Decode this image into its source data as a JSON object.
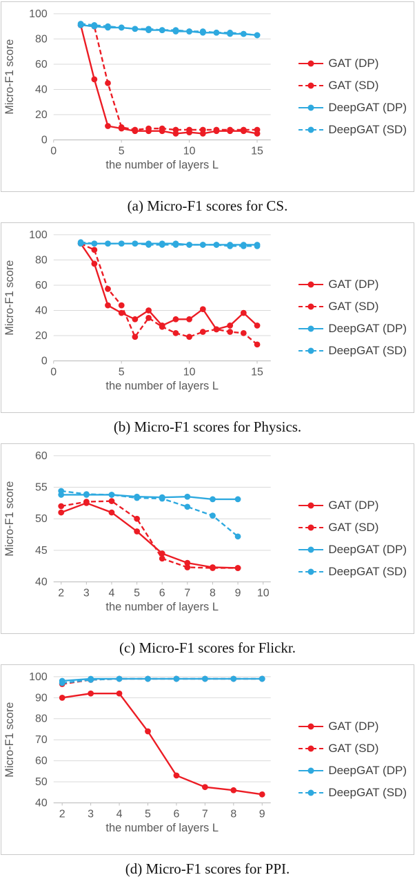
{
  "figure": {
    "background": "#ffffff"
  },
  "colors": {
    "red": "#ec1c24",
    "blue": "#2ea9df",
    "tick_text": "#595959",
    "legend_text": "#3f3f3f",
    "gridline": "#d9d9d9",
    "axis_line": "#bfbfbf",
    "panel_border": "#c9c9c9",
    "caption_text": "#121212"
  },
  "chart_data": [
    {
      "type": "line",
      "caption": "(a) Micro-F1 scores for CS.",
      "xlabel": "the number of layers L",
      "ylabel": "Micro-F1 score",
      "xlim": [
        0,
        16
      ],
      "ylim": [
        0,
        100
      ],
      "xticks": [
        0,
        5,
        10,
        15
      ],
      "yticks": [
        0,
        20,
        40,
        60,
        80,
        100
      ],
      "grid": true,
      "legend_position": "right",
      "x": [
        2,
        3,
        4,
        5,
        6,
        7,
        8,
        9,
        10,
        11,
        12,
        13,
        14,
        15
      ],
      "series": [
        {
          "name": "GAT (DP)",
          "color": "#ec1c24",
          "dashed": false,
          "values": [
            91,
            48,
            11,
            9,
            7,
            7,
            7,
            5,
            6,
            5,
            7,
            7,
            7,
            5
          ]
        },
        {
          "name": "GAT (SD)",
          "color": "#ec1c24",
          "dashed": true,
          "values": [
            91,
            90,
            45,
            10,
            8,
            9,
            9,
            8,
            8,
            8,
            8,
            8,
            8,
            8
          ]
        },
        {
          "name": "DeepGAT (DP)",
          "color": "#2ea9df",
          "dashed": false,
          "values": [
            91,
            90,
            89,
            89,
            88,
            87,
            87,
            86,
            86,
            85,
            85,
            84,
            84,
            83
          ]
        },
        {
          "name": "DeepGAT (SD)",
          "color": "#2ea9df",
          "dashed": true,
          "values": [
            92,
            91,
            90,
            89,
            88,
            88,
            87,
            87,
            86,
            86,
            85,
            85,
            84,
            83
          ]
        }
      ]
    },
    {
      "type": "line",
      "caption": "(b) Micro-F1 scores for Physics.",
      "xlabel": "the number of layers L",
      "ylabel": "Micro-F1 score",
      "xlim": [
        0,
        16
      ],
      "ylim": [
        0,
        100
      ],
      "xticks": [
        0,
        5,
        10,
        15
      ],
      "yticks": [
        0,
        20,
        40,
        60,
        80,
        100
      ],
      "grid": true,
      "legend_position": "right",
      "x": [
        2,
        3,
        4,
        5,
        6,
        7,
        8,
        9,
        10,
        11,
        12,
        13,
        14,
        15
      ],
      "series": [
        {
          "name": "GAT (DP)",
          "color": "#ec1c24",
          "dashed": false,
          "values": [
            93,
            77,
            44,
            38,
            33,
            40,
            28,
            33,
            33,
            41,
            25,
            28,
            38,
            28
          ]
        },
        {
          "name": "GAT (SD)",
          "color": "#ec1c24",
          "dashed": true,
          "values": [
            93,
            88,
            57,
            44,
            19,
            34,
            27,
            22,
            19,
            23,
            25,
            23,
            22,
            13
          ]
        },
        {
          "name": "DeepGAT (DP)",
          "color": "#2ea9df",
          "dashed": false,
          "values": [
            93,
            93,
            93,
            93,
            93,
            93,
            93,
            93,
            92,
            92,
            92,
            92,
            92,
            92
          ]
        },
        {
          "name": "DeepGAT (SD)",
          "color": "#2ea9df",
          "dashed": true,
          "values": [
            94,
            93,
            93,
            93,
            93,
            92,
            92,
            92,
            92,
            92,
            92,
            91,
            91,
            91
          ]
        }
      ]
    },
    {
      "type": "line",
      "caption": "(c) Micro-F1 scores for Flickr.",
      "xlabel": "the number of layers L",
      "ylabel": "Micro-F1 score",
      "xlim": [
        1.7,
        10.3
      ],
      "ylim": [
        40,
        60
      ],
      "xticks": [
        2,
        3,
        4,
        5,
        6,
        7,
        8,
        9,
        10
      ],
      "yticks": [
        40,
        45,
        50,
        55,
        60
      ],
      "grid": true,
      "legend_position": "right",
      "x": [
        2,
        3,
        4,
        5,
        6,
        7,
        8,
        9
      ],
      "series": [
        {
          "name": "GAT (DP)",
          "color": "#ec1c24",
          "dashed": false,
          "values": [
            51,
            52.5,
            51,
            48,
            44.5,
            43,
            42.3,
            42.2
          ]
        },
        {
          "name": "GAT (SD)",
          "color": "#ec1c24",
          "dashed": true,
          "values": [
            52,
            52.7,
            52.8,
            50,
            43.7,
            42.3,
            42.2,
            42.2
          ]
        },
        {
          "name": "DeepGAT (DP)",
          "color": "#2ea9df",
          "dashed": false,
          "values": [
            53.8,
            53.8,
            53.8,
            53.5,
            53.4,
            53.5,
            53.1,
            53.1
          ]
        },
        {
          "name": "DeepGAT (SD)",
          "color": "#2ea9df",
          "dashed": true,
          "values": [
            54.4,
            53.9,
            53.8,
            53.3,
            53.2,
            51.9,
            50.5,
            47.2
          ]
        }
      ]
    },
    {
      "type": "line",
      "caption": "(d) Micro-F1 scores for PPI.",
      "xlabel": "the number of layers L",
      "ylabel": "Micro-F1 score",
      "xlim": [
        1.7,
        9.3
      ],
      "ylim": [
        40,
        100
      ],
      "xticks": [
        2,
        3,
        4,
        5,
        6,
        7,
        8,
        9
      ],
      "yticks": [
        40,
        50,
        60,
        70,
        80,
        90,
        100
      ],
      "grid": true,
      "legend_position": "right",
      "x": [
        2,
        3,
        4,
        5,
        6,
        7,
        8,
        9
      ],
      "series": [
        {
          "name": "GAT (DP)",
          "color": "#ec1c24",
          "dashed": false,
          "values": [
            90,
            92,
            92,
            74,
            53,
            47.5,
            46,
            44
          ]
        },
        {
          "name": "GAT (SD)",
          "color": "#ec1c24",
          "dashed": true,
          "values": [
            96.5,
            98.5,
            99,
            99,
            99,
            99,
            99,
            99
          ]
        },
        {
          "name": "DeepGAT (DP)",
          "color": "#2ea9df",
          "dashed": false,
          "values": [
            98,
            99,
            99,
            99,
            99,
            99,
            99,
            99
          ]
        },
        {
          "name": "DeepGAT (SD)",
          "color": "#2ea9df",
          "dashed": true,
          "values": [
            97,
            98.5,
            99,
            99,
            99,
            99,
            99,
            99
          ]
        }
      ]
    }
  ]
}
